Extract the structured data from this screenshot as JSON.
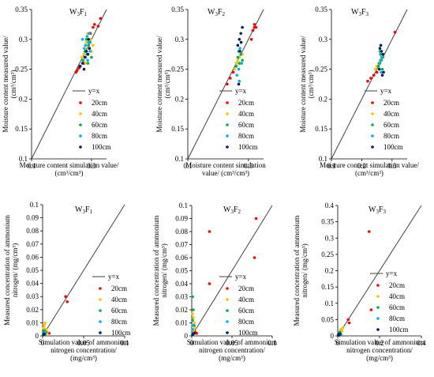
{
  "chart_data": [
    {
      "type": "scatter",
      "title_main": "W",
      "title_sub1": "3",
      "title_mid": "F",
      "title_sub2": "1",
      "xlabel_lines": [
        "Moisture content simulation value/",
        "(cm³/cm³)"
      ],
      "ylabel_lines": [
        "Moisture content measured value/",
        "(cm³/cm³)"
      ],
      "xlim": [
        0.1,
        0.35
      ],
      "ylim": [
        0.1,
        0.35
      ],
      "xticks": [
        "0.1",
        "0.3"
      ],
      "xtick_values": [
        0.1,
        0.3
      ],
      "yticks": [
        "0.1",
        "0.15",
        "0.2",
        "0.25",
        "0.3",
        "0.35"
      ],
      "ytick_values": [
        0.1,
        0.15,
        0.2,
        0.25,
        0.3,
        0.35
      ],
      "line_label": "y=x",
      "series": [
        {
          "name": "20cm",
          "color": "#ff0000",
          "x": [
            0.248,
            0.252,
            0.258,
            0.262,
            0.275,
            0.305,
            0.31,
            0.322,
            0.33,
            0.296
          ],
          "y": [
            0.245,
            0.248,
            0.252,
            0.255,
            0.26,
            0.32,
            0.325,
            0.322,
            0.335,
            0.31
          ]
        },
        {
          "name": "40cm",
          "color": "#ffc000",
          "x": [
            0.268,
            0.275,
            0.28,
            0.29,
            0.296,
            0.3,
            0.305,
            0.287,
            0.282
          ],
          "y": [
            0.27,
            0.275,
            0.26,
            0.285,
            0.3,
            0.28,
            0.29,
            0.31,
            0.295
          ]
        },
        {
          "name": "60cm",
          "color": "#00b050",
          "x": [
            0.272,
            0.278,
            0.285,
            0.29,
            0.295,
            0.3,
            0.283,
            0.288
          ],
          "y": [
            0.265,
            0.28,
            0.275,
            0.29,
            0.295,
            0.27,
            0.3,
            0.26
          ]
        },
        {
          "name": "80cm",
          "color": "#00b0f0",
          "x": [
            0.27,
            0.276,
            0.28,
            0.285,
            0.29,
            0.295,
            0.28,
            0.292,
            0.287
          ],
          "y": [
            0.3,
            0.285,
            0.29,
            0.305,
            0.295,
            0.28,
            0.27,
            0.31,
            0.265
          ]
        },
        {
          "name": "100cm",
          "color": "#002060",
          "x": [
            0.262,
            0.27,
            0.278,
            0.283,
            0.288,
            0.293,
            0.29,
            0.275
          ],
          "y": [
            0.255,
            0.26,
            0.27,
            0.28,
            0.275,
            0.285,
            0.3,
            0.25
          ]
        }
      ]
    },
    {
      "type": "scatter",
      "title_main": "W",
      "title_sub1": "3",
      "title_mid": "F",
      "title_sub2": "2",
      "xlabel_lines": [
        "Moisture content simulation",
        "value/ (cm³/cm³)"
      ],
      "ylabel_lines": [
        "Moisture content measured value/",
        "(cm³/cm³)"
      ],
      "xlim": [
        0.1,
        0.35
      ],
      "ylim": [
        0.1,
        0.35
      ],
      "xticks": [
        "0.1",
        "0.3"
      ],
      "xtick_values": [
        0.1,
        0.3
      ],
      "yticks": [
        "0.1",
        "0.15",
        "0.2",
        "0.25",
        "0.3",
        "0.35"
      ],
      "ytick_values": [
        0.1,
        0.15,
        0.2,
        0.25,
        0.3,
        0.35
      ],
      "line_label": "y=x",
      "series": [
        {
          "name": "20cm",
          "color": "#ff0000",
          "x": [
            0.23,
            0.24,
            0.25,
            0.31,
            0.315,
            0.32,
            0.325,
            0.32
          ],
          "y": [
            0.225,
            0.235,
            0.245,
            0.3,
            0.315,
            0.32,
            0.32,
            0.325
          ]
        },
        {
          "name": "40cm",
          "color": "#ffc000",
          "x": [
            0.255,
            0.26,
            0.265,
            0.27,
            0.275,
            0.28
          ],
          "y": [
            0.25,
            0.26,
            0.265,
            0.27,
            0.26,
            0.275
          ]
        },
        {
          "name": "60cm",
          "color": "#00b050",
          "x": [
            0.26,
            0.265,
            0.27,
            0.275,
            0.28,
            0.268
          ],
          "y": [
            0.255,
            0.27,
            0.26,
            0.275,
            0.265,
            0.28
          ]
        },
        {
          "name": "80cm",
          "color": "#00b0f0",
          "x": [
            0.262,
            0.268,
            0.272,
            0.278,
            0.27
          ],
          "y": [
            0.24,
            0.25,
            0.285,
            0.26,
            0.23
          ]
        },
        {
          "name": "100cm",
          "color": "#002060",
          "x": [
            0.265,
            0.27,
            0.275,
            0.28,
            0.272,
            0.276,
            0.268
          ],
          "y": [
            0.29,
            0.3,
            0.31,
            0.32,
            0.28,
            0.295,
            0.225
          ]
        }
      ]
    },
    {
      "type": "scatter",
      "title_main": "W",
      "title_sub1": "3",
      "title_mid": "F",
      "title_sub2": "3",
      "xlabel_lines": [
        "Moisture content simulation value/",
        "(cm³/cm³)"
      ],
      "ylabel_lines": [
        "Moisture content measured value/",
        "(cm³/cm³)"
      ],
      "xlim": [
        0.1,
        0.35
      ],
      "ylim": [
        0.1,
        0.35
      ],
      "xticks": [
        "0.1",
        "0.2",
        "0.3"
      ],
      "xtick_values": [
        0.1,
        0.2,
        0.3
      ],
      "yticks": [
        "0.1",
        "0.15",
        "0.2",
        "0.25",
        "0.3",
        "0.35"
      ],
      "ytick_values": [
        0.1,
        0.15,
        0.2,
        0.25,
        0.3,
        0.35
      ],
      "line_label": "y=x",
      "series": [
        {
          "name": "20cm",
          "color": "#ff0000",
          "x": [
            0.22,
            0.23,
            0.24,
            0.25,
            0.31
          ],
          "y": [
            0.23,
            0.235,
            0.24,
            0.245,
            0.312
          ]
        },
        {
          "name": "40cm",
          "color": "#ffc000",
          "x": [
            0.245,
            0.25,
            0.255,
            0.26,
            0.265,
            0.27
          ],
          "y": [
            0.25,
            0.255,
            0.26,
            0.265,
            0.27,
            0.275
          ]
        },
        {
          "name": "60cm",
          "color": "#00b050",
          "x": [
            0.255,
            0.26,
            0.265,
            0.27,
            0.262,
            0.268
          ],
          "y": [
            0.255,
            0.26,
            0.265,
            0.27,
            0.275,
            0.25
          ]
        },
        {
          "name": "80cm",
          "color": "#00b0f0",
          "x": [
            0.258,
            0.262,
            0.266,
            0.27,
            0.264,
            0.26
          ],
          "y": [
            0.26,
            0.265,
            0.27,
            0.275,
            0.245,
            0.28
          ]
        },
        {
          "name": "100cm",
          "color": "#002060",
          "x": [
            0.26,
            0.265,
            0.27,
            0.263,
            0.268,
            0.272,
            0.258
          ],
          "y": [
            0.285,
            0.28,
            0.275,
            0.29,
            0.24,
            0.245,
            0.25
          ]
        }
      ]
    },
    {
      "type": "scatter",
      "title_main": "W",
      "title_sub1": "3",
      "title_mid": "F",
      "title_sub2": "1",
      "xlabel_lines": [
        "Simulation value of ammonium",
        "nitrogen concentration/",
        "(mg/cm³)"
      ],
      "ylabel_lines": [
        "Measured concentration of ammonium",
        "nitrogen/ (mg/cm³)"
      ],
      "xlim": [
        0,
        0.1
      ],
      "ylim": [
        0,
        0.1
      ],
      "xticks": [
        "0",
        "0.05",
        "0.1"
      ],
      "xtick_values": [
        0,
        0.05,
        0.1
      ],
      "yticks": [
        "0",
        "0.01",
        "0.02",
        "0.03",
        "0.04",
        "0.05",
        "0.06",
        "0.07",
        "0.08",
        "0.09",
        "0.1"
      ],
      "ytick_values": [
        0,
        0.01,
        0.02,
        0.03,
        0.04,
        0.05,
        0.06,
        0.07,
        0.08,
        0.09,
        0.1
      ],
      "line_label": "y=x",
      "series": [
        {
          "name": "20cm",
          "color": "#ff0000",
          "x": [
            0.028,
            0.03,
            0.008,
            0.004,
            0.002
          ],
          "y": [
            0.03,
            0.026,
            0.002,
            0.003,
            0.001
          ]
        },
        {
          "name": "40cm",
          "color": "#ffc000",
          "x": [
            0.002,
            0.004,
            0.006,
            0.003,
            0.005,
            0.001
          ],
          "y": [
            0.008,
            0.005,
            0.003,
            0.01,
            0.002,
            0.006
          ]
        },
        {
          "name": "60cm",
          "color": "#00b050",
          "x": [
            0.001,
            0.002,
            0.003,
            0.004
          ],
          "y": [
            0.002,
            0.004,
            0.001,
            0.003
          ]
        },
        {
          "name": "80cm",
          "color": "#00b0f0",
          "x": [
            0.001,
            0.002,
            0.003
          ],
          "y": [
            0.001,
            0.002,
            0.003
          ]
        },
        {
          "name": "100cm",
          "color": "#002060",
          "x": [
            0.001,
            0.002
          ],
          "y": [
            0.001,
            0.0015
          ]
        }
      ]
    },
    {
      "type": "scatter",
      "title_main": "W",
      "title_sub1": "3",
      "title_mid": "F",
      "title_sub2": "2",
      "xlabel_lines": [
        "Simulation value of ammonium",
        "nitrogen concentration/",
        "(mg/cm³)"
      ],
      "ylabel_lines": [
        "Measured concentration of ammonium",
        "nitrogen/ (mg/cm³)"
      ],
      "xlim": [
        0,
        0.1
      ],
      "ylim": [
        0,
        0.1
      ],
      "xticks": [
        "0",
        "0.05",
        "0.1"
      ],
      "xtick_values": [
        0,
        0.05,
        0.1
      ],
      "yticks": [
        "0",
        "0.01",
        "0.02",
        "0.03",
        "0.04",
        "0.05",
        "0.06",
        "0.07",
        "0.08",
        "0.09",
        "0.1"
      ],
      "ytick_values": [
        0,
        0.01,
        0.02,
        0.03,
        0.04,
        0.05,
        0.06,
        0.07,
        0.08,
        0.09,
        0.1
      ],
      "line_label": "y=x",
      "series": [
        {
          "name": "20cm",
          "color": "#ff0000",
          "x": [
            0.022,
            0.022,
            0.078,
            0.08,
            0.004,
            0.006
          ],
          "y": [
            0.08,
            0.04,
            0.06,
            0.09,
            0.003,
            0.002
          ]
        },
        {
          "name": "40cm",
          "color": "#ffc000",
          "x": [
            0.001,
            0.002,
            0.003,
            0.004,
            0.002
          ],
          "y": [
            0.017,
            0.014,
            0.01,
            0.006,
            0.004
          ]
        },
        {
          "name": "60cm",
          "color": "#00b050",
          "x": [
            0.001,
            0.002,
            0.001,
            0.003
          ],
          "y": [
            0.03,
            0.02,
            0.012,
            0.008
          ]
        },
        {
          "name": "80cm",
          "color": "#00b0f0",
          "x": [
            0.001,
            0.002,
            0.001
          ],
          "y": [
            0.005,
            0.002,
            0.008
          ]
        },
        {
          "name": "100cm",
          "color": "#002060",
          "x": [
            0.001,
            0.003
          ],
          "y": [
            0.001,
            0.002
          ]
        }
      ]
    },
    {
      "type": "scatter",
      "title_main": "W",
      "title_sub1": "3",
      "title_mid": "F",
      "title_sub2": "3",
      "xlabel_lines": [
        "Simulation value of ammonium",
        "nitrogen concentration/",
        "(mg/cm³)"
      ],
      "ylabel_lines": [
        "Measured concentration of ammonium",
        "nitrogen/ (mg/cm³)"
      ],
      "xlim": [
        0,
        0.4
      ],
      "ylim": [
        0,
        0.4
      ],
      "xticks": [
        "0",
        "0.2",
        "0.4"
      ],
      "xtick_values": [
        0,
        0.2,
        0.4
      ],
      "yticks": [
        "0",
        "0.05",
        "0.1",
        "0.15",
        "0.2",
        "0.25",
        "0.3",
        "0.35",
        "0.4"
      ],
      "ytick_values": [
        0,
        0.05,
        0.1,
        0.15,
        0.2,
        0.25,
        0.3,
        0.35,
        0.4
      ],
      "line_label": "y=x",
      "series": [
        {
          "name": "20cm",
          "color": "#ff0000",
          "x": [
            0.15,
            0.16,
            0.05,
            0.055,
            0.01
          ],
          "y": [
            0.32,
            0.08,
            0.05,
            0.04,
            0.01
          ]
        },
        {
          "name": "40cm",
          "color": "#ffc000",
          "x": [
            0.01,
            0.015,
            0.02,
            0.025
          ],
          "y": [
            0.012,
            0.02,
            0.015,
            0.025
          ]
        },
        {
          "name": "60cm",
          "color": "#00b050",
          "x": [
            0.005,
            0.01,
            0.015
          ],
          "y": [
            0.008,
            0.012,
            0.005
          ]
        },
        {
          "name": "80cm",
          "color": "#00b0f0",
          "x": [
            0.004,
            0.008,
            0.012
          ],
          "y": [
            0.003,
            0.006,
            0.01
          ]
        },
        {
          "name": "100cm",
          "color": "#002060",
          "x": [
            0.003,
            0.006,
            0.01
          ],
          "y": [
            0.004,
            0.002,
            0.007
          ]
        }
      ]
    }
  ]
}
